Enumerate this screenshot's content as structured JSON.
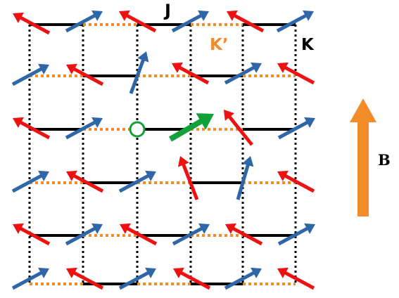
{
  "labels": {
    "j": "J",
    "k_prime": "K’",
    "k": "K",
    "b": "B"
  },
  "colors": {
    "bond_j": "#000000",
    "bond_k_prime": "#f28c28",
    "bond_k": "#000000",
    "spin_red": "#ee1111",
    "spin_blue": "#2e66a8",
    "spin_green": "#12a03a",
    "field": "#f28c28",
    "vacancy": "#12a03a"
  },
  "icons": {
    "spin": "arrow-icon",
    "vacancy": "circle-icon",
    "field": "field-arrow-icon"
  }
}
